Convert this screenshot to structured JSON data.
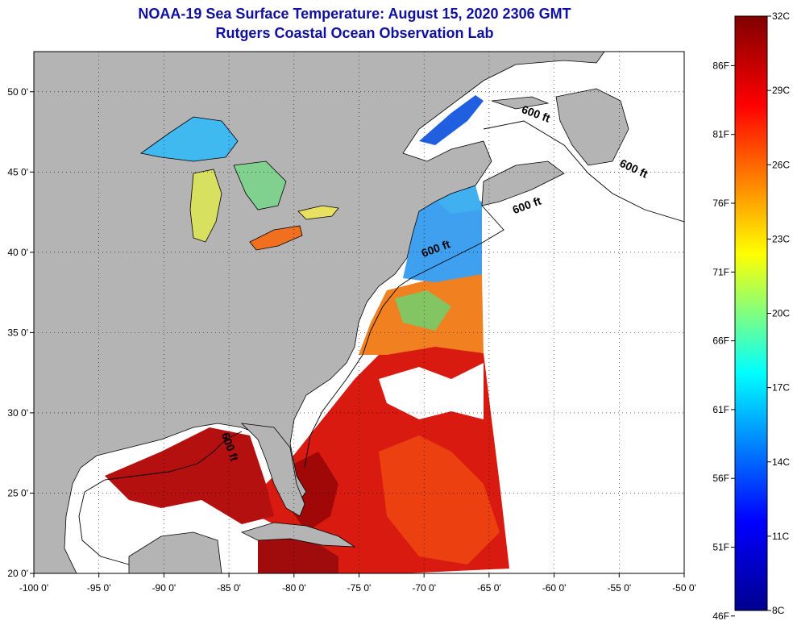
{
  "header": {
    "title": "NOAA-19 Sea Surface Temperature:  August 15, 2020 2306 GMT",
    "subtitle": "Rutgers Coastal Ocean Observation Lab"
  },
  "map": {
    "lon_range": [
      -100,
      -50
    ],
    "lat_range": [
      20,
      52.5
    ],
    "lon_ticks": [
      {
        "value": -100,
        "label": "-100 0'"
      },
      {
        "value": -95,
        "label": "-95 0'"
      },
      {
        "value": -90,
        "label": "-90 0'"
      },
      {
        "value": -85,
        "label": "-85 0'"
      },
      {
        "value": -80,
        "label": "-80 0'"
      },
      {
        "value": -75,
        "label": "-75 0'"
      },
      {
        "value": -70,
        "label": "-70 0'"
      },
      {
        "value": -65,
        "label": "-65 0'"
      },
      {
        "value": -60,
        "label": "-60 0'"
      },
      {
        "value": -55,
        "label": "-55 0'"
      },
      {
        "value": -50,
        "label": "-50 0'"
      }
    ],
    "lat_ticks": [
      {
        "value": 50,
        "label": "50 0'"
      },
      {
        "value": 45,
        "label": "45 0'"
      },
      {
        "value": 40,
        "label": "40 0'"
      },
      {
        "value": 35,
        "label": "35 0'"
      },
      {
        "value": 30,
        "label": "30 0'"
      },
      {
        "value": 25,
        "label": "25 0'"
      },
      {
        "value": 20,
        "label": "20 0'"
      }
    ],
    "land_color": "#b4b4b4",
    "depth_label": "600 ft",
    "depth_labels": [
      {
        "text": "600 ft",
        "lon": -61.5,
        "lat": 48.4
      },
      {
        "text": "600 ft",
        "lon": -54.0,
        "lat": 45.0
      },
      {
        "text": "600 ft",
        "lon": -62.0,
        "lat": 42.7
      },
      {
        "text": "600 ft",
        "lon": -69.0,
        "lat": 40.0
      },
      {
        "text": "600 ft",
        "lon": -85.2,
        "lat": 27.8
      }
    ]
  },
  "colorbar": {
    "celsius": [
      "32C",
      "29C",
      "26C",
      "23C",
      "20C",
      "17C",
      "14C",
      "11C",
      "8C"
    ],
    "fahrenheit": [
      "86F",
      "81F",
      "76F",
      "71F",
      "66F",
      "61F",
      "56F",
      "51F",
      "46F"
    ],
    "c_range": [
      8,
      32
    ],
    "colors": [
      "#00008f",
      "#0000ff",
      "#00ffff",
      "#ffff00",
      "#ff0000",
      "#800000"
    ]
  }
}
